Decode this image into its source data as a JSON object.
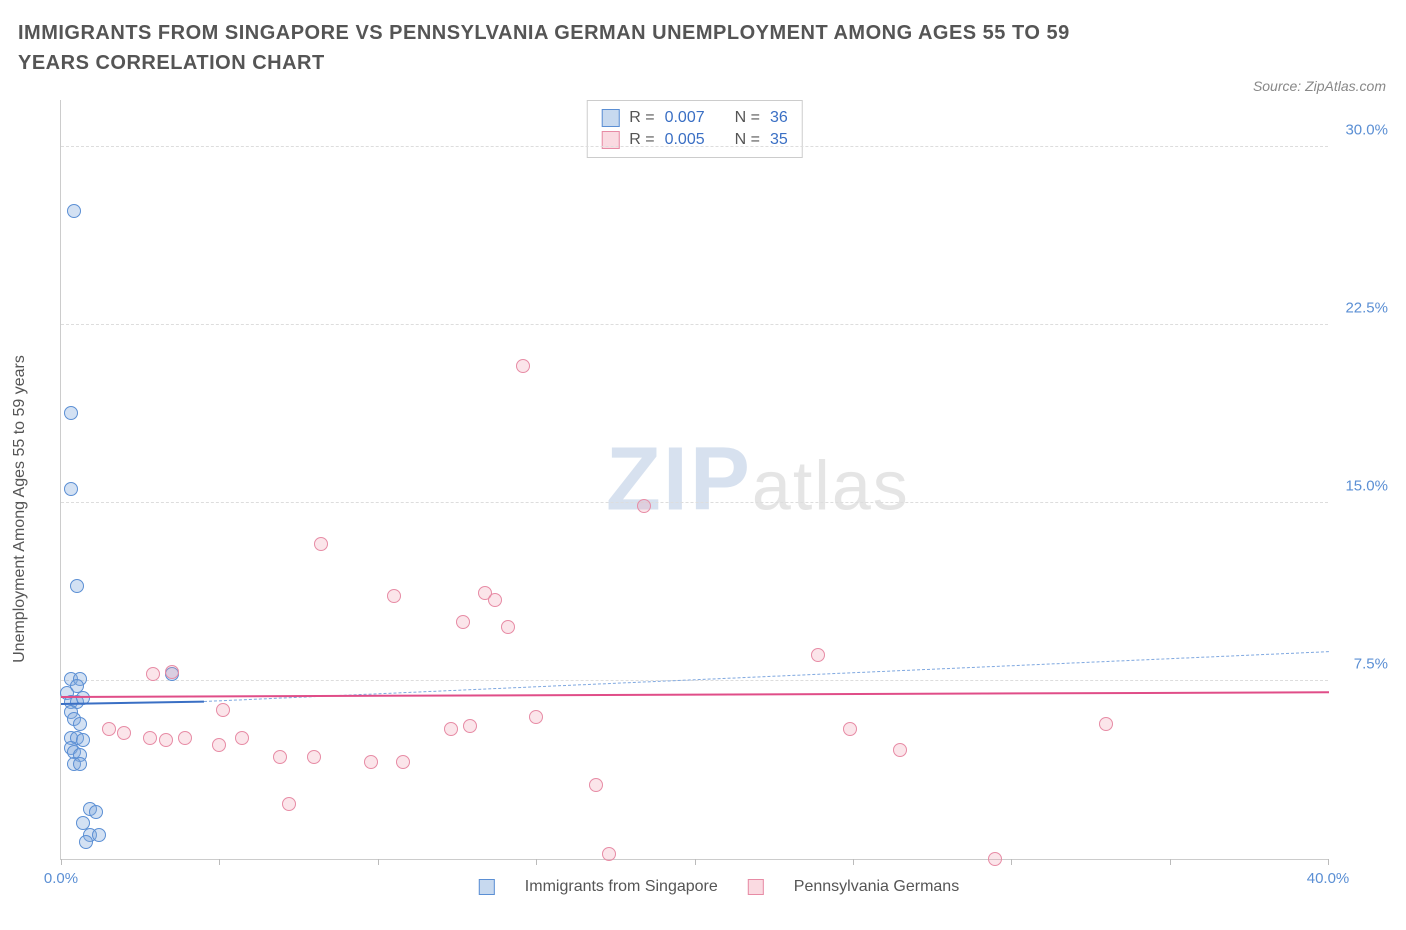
{
  "title": "IMMIGRANTS FROM SINGAPORE VS PENNSYLVANIA GERMAN UNEMPLOYMENT AMONG AGES 55 TO 59 YEARS CORRELATION CHART",
  "source": "Source: ZipAtlas.com",
  "watermark_zip": "ZIP",
  "watermark_atlas": "atlas",
  "y_axis_label": "Unemployment Among Ages 55 to 59 years",
  "chart": {
    "type": "scatter",
    "xlim": [
      0,
      40
    ],
    "ylim": [
      0,
      32
    ],
    "x_ticks": [
      0,
      5,
      10,
      15,
      20,
      25,
      30,
      35,
      40
    ],
    "x_tick_labels": {
      "0": "0.0%",
      "40": "40.0%"
    },
    "y_ticks": [
      7.5,
      15.0,
      22.5,
      30.0
    ],
    "y_tick_labels": [
      "7.5%",
      "15.0%",
      "22.5%",
      "30.0%"
    ],
    "grid_color": "#dddddd",
    "background": "#ffffff",
    "series": [
      {
        "name": "Immigrants from Singapore",
        "key": "blue",
        "fill": "rgba(130,170,220,0.35)",
        "stroke": "#5b8fd4",
        "R": "0.007",
        "N": "36",
        "points": [
          [
            0.4,
            27.3
          ],
          [
            0.3,
            18.8
          ],
          [
            0.3,
            15.6
          ],
          [
            0.5,
            11.5
          ],
          [
            0.3,
            7.6
          ],
          [
            0.6,
            7.6
          ],
          [
            0.5,
            7.3
          ],
          [
            0.2,
            7.0
          ],
          [
            0.3,
            6.6
          ],
          [
            0.5,
            6.6
          ],
          [
            0.7,
            6.8
          ],
          [
            0.3,
            6.2
          ],
          [
            0.4,
            5.9
          ],
          [
            0.6,
            5.7
          ],
          [
            0.3,
            5.1
          ],
          [
            0.5,
            5.1
          ],
          [
            0.7,
            5.0
          ],
          [
            0.3,
            4.7
          ],
          [
            0.4,
            4.5
          ],
          [
            0.6,
            4.4
          ],
          [
            0.4,
            4.0
          ],
          [
            0.6,
            4.0
          ],
          [
            0.9,
            2.1
          ],
          [
            1.1,
            2.0
          ],
          [
            0.7,
            1.5
          ],
          [
            0.9,
            1.0
          ],
          [
            1.2,
            1.0
          ],
          [
            0.8,
            0.7
          ],
          [
            3.5,
            7.8
          ]
        ],
        "trend_solid": {
          "x1": 0,
          "y1": 6.6,
          "x2": 4.5,
          "y2": 6.7
        },
        "trend_dash": {
          "x1": 4.5,
          "y1": 6.7,
          "x2": 40,
          "y2": 8.8
        }
      },
      {
        "name": "Pennsylvania Germans",
        "key": "pink",
        "fill": "rgba(240,150,170,0.25)",
        "stroke": "#e78ba5",
        "R": "0.005",
        "N": "35",
        "points": [
          [
            14.6,
            20.8
          ],
          [
            18.4,
            14.9
          ],
          [
            8.2,
            13.3
          ],
          [
            10.5,
            11.1
          ],
          [
            13.4,
            11.2
          ],
          [
            13.7,
            10.9
          ],
          [
            12.7,
            10.0
          ],
          [
            14.1,
            9.8
          ],
          [
            23.9,
            8.6
          ],
          [
            3.5,
            7.9
          ],
          [
            2.9,
            7.8
          ],
          [
            5.1,
            6.3
          ],
          [
            15.0,
            6.0
          ],
          [
            1.5,
            5.5
          ],
          [
            2.0,
            5.3
          ],
          [
            2.8,
            5.1
          ],
          [
            3.3,
            5.0
          ],
          [
            3.9,
            5.1
          ],
          [
            5.7,
            5.1
          ],
          [
            5.0,
            4.8
          ],
          [
            6.9,
            4.3
          ],
          [
            8.0,
            4.3
          ],
          [
            9.8,
            4.1
          ],
          [
            10.8,
            4.1
          ],
          [
            12.9,
            5.6
          ],
          [
            12.3,
            5.5
          ],
          [
            16.9,
            3.1
          ],
          [
            24.9,
            5.5
          ],
          [
            26.5,
            4.6
          ],
          [
            33.0,
            5.7
          ],
          [
            17.3,
            0.2
          ],
          [
            29.5,
            0.0
          ],
          [
            7.2,
            2.3
          ]
        ],
        "trend_solid": {
          "x1": 0,
          "y1": 6.9,
          "x2": 40,
          "y2": 7.1
        }
      }
    ]
  },
  "stats_box": {
    "rows": [
      {
        "swatch": "blue",
        "R_label": "R =",
        "R": "0.007",
        "N_label": "N =",
        "N": "36"
      },
      {
        "swatch": "pink",
        "R_label": "R =",
        "R": "0.005",
        "N_label": "N =",
        "N": "35"
      }
    ]
  },
  "footer_legend": [
    {
      "swatch": "blue",
      "label": "Immigrants from Singapore"
    },
    {
      "swatch": "pink",
      "label": "Pennsylvania Germans"
    }
  ]
}
